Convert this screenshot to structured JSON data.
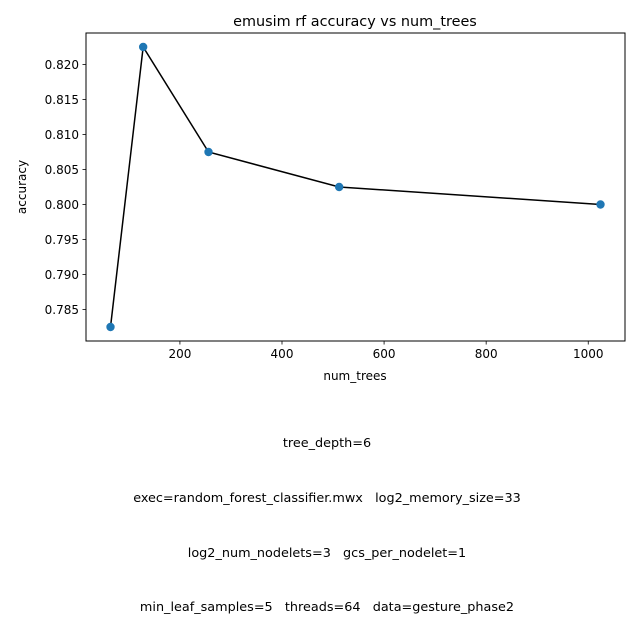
{
  "chart_data": {
    "type": "line",
    "title": "emusim rf accuracy vs num_trees",
    "xlabel": "num_trees",
    "ylabel": "accuracy",
    "x": [
      64,
      128,
      256,
      512,
      1024
    ],
    "series": [
      {
        "values": [
          0.7825,
          0.8225,
          0.8075,
          0.8025,
          0.8
        ]
      }
    ],
    "xlim": [
      16.0,
      1072.0
    ],
    "ylim": [
      0.7805,
      0.8245
    ],
    "xticks": [
      200,
      400,
      600,
      800,
      1000
    ],
    "xtick_labels": [
      "200",
      "400",
      "600",
      "800",
      "1000"
    ],
    "yticks": [
      0.785,
      0.79,
      0.795,
      0.8,
      0.805,
      0.81,
      0.815,
      0.82
    ],
    "ytick_labels": [
      "0.785",
      "0.790",
      "0.795",
      "0.800",
      "0.805",
      "0.810",
      "0.815",
      "0.820"
    ],
    "grid": false,
    "colors": {
      "line": "#000000",
      "marker": "#1f77b4"
    }
  },
  "caption": {
    "lines": [
      "tree_depth=6",
      "exec=random_forest_classifier.mwx   log2_memory_size=33",
      "log2_num_nodelets=3   gcs_per_nodelet=1",
      "min_leaf_samples=5   threads=64   data=gesture_phase2"
    ]
  }
}
